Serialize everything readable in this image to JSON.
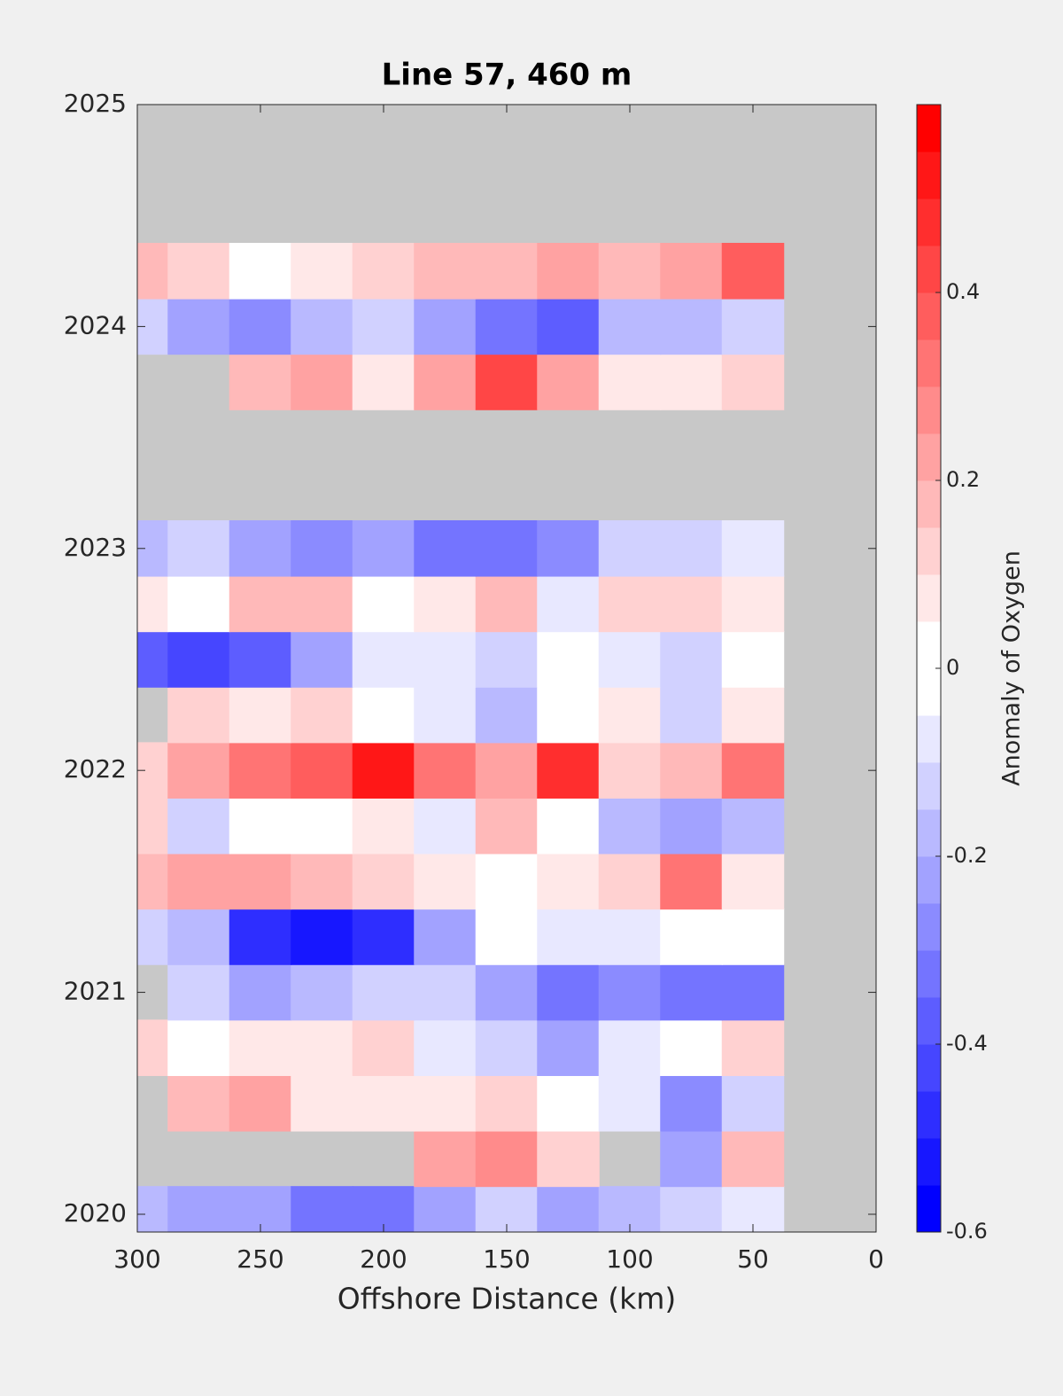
{
  "chart_data": {
    "type": "contour",
    "title": "Line 57, 460 m",
    "xlabel": "Offshore Distance (km)",
    "xlim": [
      300,
      0
    ],
    "xticks": [
      300,
      250,
      200,
      150,
      100,
      50,
      0
    ],
    "ylim": [
      2019.92,
      2025
    ],
    "yticks": [
      2020,
      2021,
      2022,
      2023,
      2024,
      2025
    ],
    "x": [
      300,
      275,
      250,
      225,
      200,
      175,
      150,
      125,
      100,
      75,
      50
    ],
    "y": [
      2020.0,
      2020.25,
      2020.5,
      2020.75,
      2021.0,
      2021.25,
      2021.5,
      2021.75,
      2022.0,
      2022.25,
      2022.5,
      2022.75,
      2023.0,
      2023.25,
      2023.5,
      2023.75,
      2024.0,
      2024.25
    ],
    "z": [
      [
        -0.15,
        -0.2,
        -0.2,
        -0.3,
        -0.3,
        -0.2,
        -0.1,
        -0.2,
        -0.15,
        -0.1,
        -0.05
      ],
      [
        null,
        null,
        null,
        null,
        null,
        0.2,
        0.25,
        0.1,
        null,
        -0.2,
        0.15
      ],
      [
        null,
        0.15,
        0.2,
        0.05,
        0.05,
        0.05,
        0.1,
        0,
        -0.05,
        -0.25,
        -0.1
      ],
      [
        0.1,
        0,
        0.05,
        0.05,
        0.1,
        -0.05,
        -0.1,
        -0.2,
        -0.05,
        0,
        0.1
      ],
      [
        null,
        -0.1,
        -0.2,
        -0.15,
        -0.1,
        -0.1,
        -0.2,
        -0.3,
        -0.25,
        -0.3,
        -0.3
      ],
      [
        -0.1,
        -0.15,
        -0.45,
        -0.5,
        -0.45,
        -0.2,
        0,
        -0.05,
        -0.05,
        0,
        0
      ],
      [
        0.15,
        0.2,
        0.2,
        0.15,
        0.1,
        0.05,
        0,
        0.05,
        0.1,
        0.3,
        0.05
      ],
      [
        0.1,
        -0.1,
        0,
        0,
        0.05,
        -0.05,
        0.15,
        0,
        -0.15,
        -0.2,
        -0.15
      ],
      [
        0.1,
        0.2,
        0.3,
        0.35,
        0.5,
        0.3,
        0.2,
        0.45,
        0.1,
        0.15,
        0.3
      ],
      [
        null,
        0.1,
        0.05,
        0.1,
        0,
        -0.05,
        -0.15,
        0,
        0.05,
        -0.1,
        0.05
      ],
      [
        -0.35,
        -0.4,
        -0.35,
        -0.2,
        -0.05,
        -0.05,
        -0.1,
        0,
        -0.05,
        -0.1,
        0
      ],
      [
        0.05,
        0,
        0.15,
        0.15,
        0,
        0.05,
        0.15,
        -0.05,
        0.1,
        0.1,
        0.05
      ],
      [
        -0.15,
        -0.1,
        -0.2,
        -0.25,
        -0.2,
        -0.3,
        -0.3,
        -0.25,
        -0.1,
        -0.1,
        -0.05
      ],
      [
        null,
        null,
        null,
        null,
        null,
        null,
        null,
        null,
        null,
        null,
        null
      ],
      [
        null,
        null,
        null,
        null,
        null,
        null,
        null,
        null,
        null,
        null,
        null
      ],
      [
        null,
        null,
        0.15,
        0.2,
        0.05,
        0.2,
        0.4,
        0.2,
        0.05,
        0.05,
        0.1
      ],
      [
        -0.1,
        -0.2,
        -0.25,
        -0.15,
        -0.1,
        -0.2,
        -0.3,
        -0.35,
        -0.15,
        -0.15,
        -0.1
      ],
      [
        0.15,
        0.1,
        0,
        0.05,
        0.1,
        0.15,
        0.15,
        0.2,
        0.15,
        0.2,
        0.35
      ]
    ],
    "missing_color": "#c8c8c8",
    "low_color": "#0000ff",
    "high_color": "#ff0000",
    "colorbar": {
      "label": "Anomaly of Oxygen",
      "lim": [
        -0.6,
        0.6
      ],
      "ticks": [
        -0.6,
        -0.4,
        -0.2,
        0,
        0.2,
        0.4
      ],
      "levels": 24
    }
  }
}
